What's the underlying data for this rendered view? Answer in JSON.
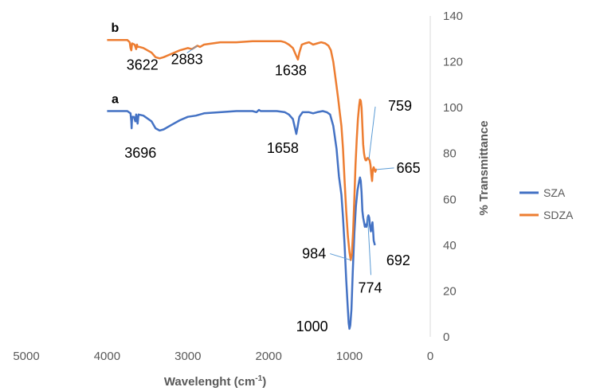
{
  "chart_data": {
    "type": "line",
    "xlabel": "Wavelenght (cm",
    "xlabel_sup": "-1",
    "xlabel_suffix": ")",
    "ylabel": "% Transmittance",
    "xlim": [
      5000,
      0
    ],
    "ylim": [
      0,
      140
    ],
    "xticks": [
      5000,
      4000,
      3000,
      2000,
      1000,
      0
    ],
    "yticks": [
      0,
      20,
      40,
      60,
      80,
      100,
      120,
      140
    ],
    "x_reversed": true,
    "grid": false,
    "legend_position": "right",
    "series": [
      {
        "name": "SZA",
        "color": "#4472C4",
        "curve_label": "a",
        "points": [
          [
            4000,
            98.5
          ],
          [
            3750,
            98.5
          ],
          [
            3710,
            97.5
          ],
          [
            3700,
            94
          ],
          [
            3696,
            91
          ],
          [
            3690,
            96
          ],
          [
            3670,
            96
          ],
          [
            3650,
            94
          ],
          [
            3640,
            97
          ],
          [
            3622,
            93
          ],
          [
            3610,
            97
          ],
          [
            3550,
            96.5
          ],
          [
            3450,
            94
          ],
          [
            3400,
            91
          ],
          [
            3350,
            90
          ],
          [
            3300,
            90.5
          ],
          [
            3200,
            92.5
          ],
          [
            3100,
            94.5
          ],
          [
            3000,
            96
          ],
          [
            2900,
            96.5
          ],
          [
            2800,
            97.5
          ],
          [
            2600,
            98
          ],
          [
            2400,
            98.5
          ],
          [
            2200,
            98.5
          ],
          [
            2150,
            98
          ],
          [
            2120,
            99
          ],
          [
            2100,
            98.5
          ],
          [
            2000,
            98.5
          ],
          [
            1900,
            98.5
          ],
          [
            1800,
            98
          ],
          [
            1750,
            97
          ],
          [
            1700,
            95
          ],
          [
            1680,
            92
          ],
          [
            1658,
            88.5
          ],
          [
            1640,
            92
          ],
          [
            1620,
            96
          ],
          [
            1580,
            98
          ],
          [
            1500,
            98
          ],
          [
            1450,
            97.5
          ],
          [
            1400,
            98
          ],
          [
            1330,
            98.5
          ],
          [
            1280,
            98
          ],
          [
            1240,
            97
          ],
          [
            1200,
            92
          ],
          [
            1160,
            82
          ],
          [
            1130,
            70
          ],
          [
            1100,
            62
          ],
          [
            1080,
            52
          ],
          [
            1060,
            40
          ],
          [
            1040,
            25
          ],
          [
            1020,
            12
          ],
          [
            1010,
            6
          ],
          [
            1000,
            3.5
          ],
          [
            990,
            5
          ],
          [
            975,
            12
          ],
          [
            960,
            28
          ],
          [
            940,
            45
          ],
          [
            920,
            57
          ],
          [
            900,
            64
          ],
          [
            880,
            68
          ],
          [
            870,
            69.5
          ],
          [
            860,
            68
          ],
          [
            850,
            63
          ],
          [
            840,
            55
          ],
          [
            830,
            52
          ],
          [
            820,
            50
          ],
          [
            810,
            48
          ],
          [
            800,
            49
          ],
          [
            790,
            48
          ],
          [
            780,
            50
          ],
          [
            774,
            52
          ],
          [
            765,
            53
          ],
          [
            755,
            52
          ],
          [
            745,
            48
          ],
          [
            735,
            46
          ],
          [
            725,
            48
          ],
          [
            715,
            50
          ],
          [
            705,
            45
          ],
          [
            700,
            42
          ],
          [
            692,
            41
          ],
          [
            685,
            40
          ]
        ]
      },
      {
        "name": "SDZA",
        "color": "#ED7D31",
        "curve_label": "b",
        "points": [
          [
            4000,
            129.5
          ],
          [
            3750,
            129.5
          ],
          [
            3720,
            128.5
          ],
          [
            3710,
            126
          ],
          [
            3700,
            125
          ],
          [
            3690,
            128
          ],
          [
            3660,
            127.5
          ],
          [
            3640,
            125.5
          ],
          [
            3630,
            127.5
          ],
          [
            3622,
            126.5
          ],
          [
            3600,
            126.5
          ],
          [
            3550,
            126
          ],
          [
            3450,
            124
          ],
          [
            3400,
            122
          ],
          [
            3350,
            121.5
          ],
          [
            3300,
            122
          ],
          [
            3200,
            123.5
          ],
          [
            3100,
            125
          ],
          [
            3000,
            126
          ],
          [
            2950,
            125.5
          ],
          [
            2883,
            127
          ],
          [
            2850,
            126.5
          ],
          [
            2800,
            127.5
          ],
          [
            2600,
            128.5
          ],
          [
            2400,
            128.5
          ],
          [
            2200,
            129
          ],
          [
            2000,
            129
          ],
          [
            1850,
            129
          ],
          [
            1800,
            128.5
          ],
          [
            1750,
            127.5
          ],
          [
            1700,
            126
          ],
          [
            1670,
            123.5
          ],
          [
            1638,
            121
          ],
          [
            1620,
            124
          ],
          [
            1590,
            127.5
          ],
          [
            1550,
            128
          ],
          [
            1500,
            128.5
          ],
          [
            1450,
            127.5
          ],
          [
            1400,
            128
          ],
          [
            1350,
            128.5
          ],
          [
            1300,
            128
          ],
          [
            1260,
            127
          ],
          [
            1230,
            125
          ],
          [
            1200,
            120
          ],
          [
            1170,
            112
          ],
          [
            1140,
            104
          ],
          [
            1120,
            98
          ],
          [
            1100,
            92
          ],
          [
            1080,
            82
          ],
          [
            1060,
            68
          ],
          [
            1040,
            55
          ],
          [
            1020,
            44
          ],
          [
            1000,
            37
          ],
          [
            984,
            33.5
          ],
          [
            970,
            36
          ],
          [
            955,
            46
          ],
          [
            940,
            60
          ],
          [
            925,
            75
          ],
          [
            910,
            86
          ],
          [
            895,
            95
          ],
          [
            880,
            101
          ],
          [
            870,
            103.5
          ],
          [
            860,
            103
          ],
          [
            850,
            100
          ],
          [
            840,
            92
          ],
          [
            830,
            84
          ],
          [
            820,
            80
          ],
          [
            810,
            78
          ],
          [
            800,
            77
          ],
          [
            790,
            77
          ],
          [
            780,
            78
          ],
          [
            770,
            78
          ],
          [
            759,
            77.5
          ],
          [
            750,
            77
          ],
          [
            740,
            75
          ],
          [
            730,
            71
          ],
          [
            720,
            68
          ],
          [
            710,
            73
          ],
          [
            700,
            74
          ],
          [
            690,
            73
          ],
          [
            680,
            72
          ],
          [
            670,
            73
          ],
          [
            665,
            73
          ]
        ]
      }
    ],
    "annotations": [
      {
        "text": "3622",
        "x": 3622,
        "y": 125.5
      },
      {
        "text": "2883",
        "x": 2883,
        "y": 127
      },
      {
        "text": "1638",
        "x": 1638,
        "y": 121
      },
      {
        "text": "759",
        "x": 759,
        "y": 77.5
      },
      {
        "text": "665",
        "x": 665,
        "y": 73
      },
      {
        "text": "3696",
        "x": 3696,
        "y": 91
      },
      {
        "text": "1658",
        "x": 1658,
        "y": 88.5
      },
      {
        "text": "984",
        "x": 984,
        "y": 33.5
      },
      {
        "text": "692",
        "x": 692,
        "y": 41
      },
      {
        "text": "774",
        "x": 774,
        "y": 52
      },
      {
        "text": "1000",
        "x": 1000,
        "y": 3.5
      }
    ]
  }
}
